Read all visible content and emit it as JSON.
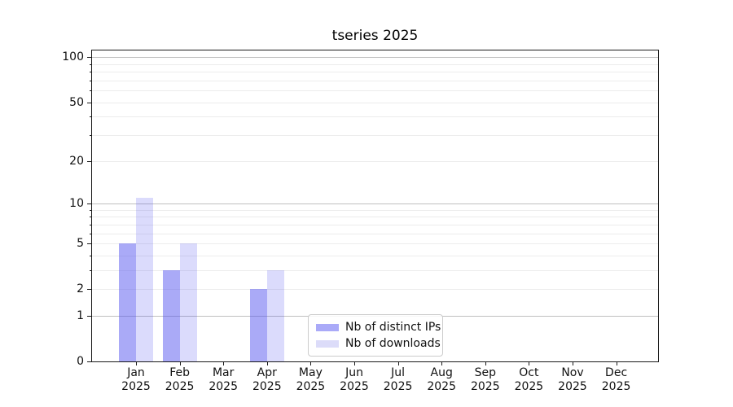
{
  "title": "tseries 2025",
  "chart_data": {
    "type": "bar",
    "title": "tseries 2025",
    "categories": [
      "Jan",
      "Feb",
      "Mar",
      "Apr",
      "May",
      "Jun",
      "Jul",
      "Aug",
      "Sep",
      "Oct",
      "Nov",
      "Dec"
    ],
    "category_year": "2025",
    "series": [
      {
        "name": "Nb of distinct IPs",
        "color": "rgba(85,85,240,0.50)",
        "swatch_color": "#aaaaf8",
        "values": [
          5,
          3,
          0,
          2,
          0,
          0,
          0,
          0,
          0,
          0,
          0,
          0
        ]
      },
      {
        "name": "Nb of downloads",
        "color": "rgba(85,85,240,0.21)",
        "swatch_color": "#dcdcf9",
        "values": [
          11,
          5,
          0,
          3,
          0,
          0,
          0,
          0,
          0,
          0,
          0,
          0
        ]
      }
    ],
    "yscale": "log1p",
    "ylim": [
      0,
      111
    ],
    "ytick_values": [
      0,
      1,
      2,
      5,
      10,
      20,
      50,
      100
    ],
    "ytick_labels": [
      "0",
      "1",
      "2",
      "5",
      "10",
      "20",
      "50",
      "100"
    ],
    "major_grid_values": [
      1,
      10,
      100
    ],
    "minor_grid_values": [
      2,
      3,
      4,
      5,
      6,
      7,
      8,
      9,
      20,
      30,
      40,
      50,
      60,
      70,
      80,
      90
    ],
    "grid": "horizontal",
    "legend_position": "lower center",
    "colors": {
      "major_grid": "#bfbfbf",
      "minor_grid": "#ececec",
      "spine": "#1a1a1a",
      "text": "#111111",
      "background": "#ffffff"
    }
  }
}
